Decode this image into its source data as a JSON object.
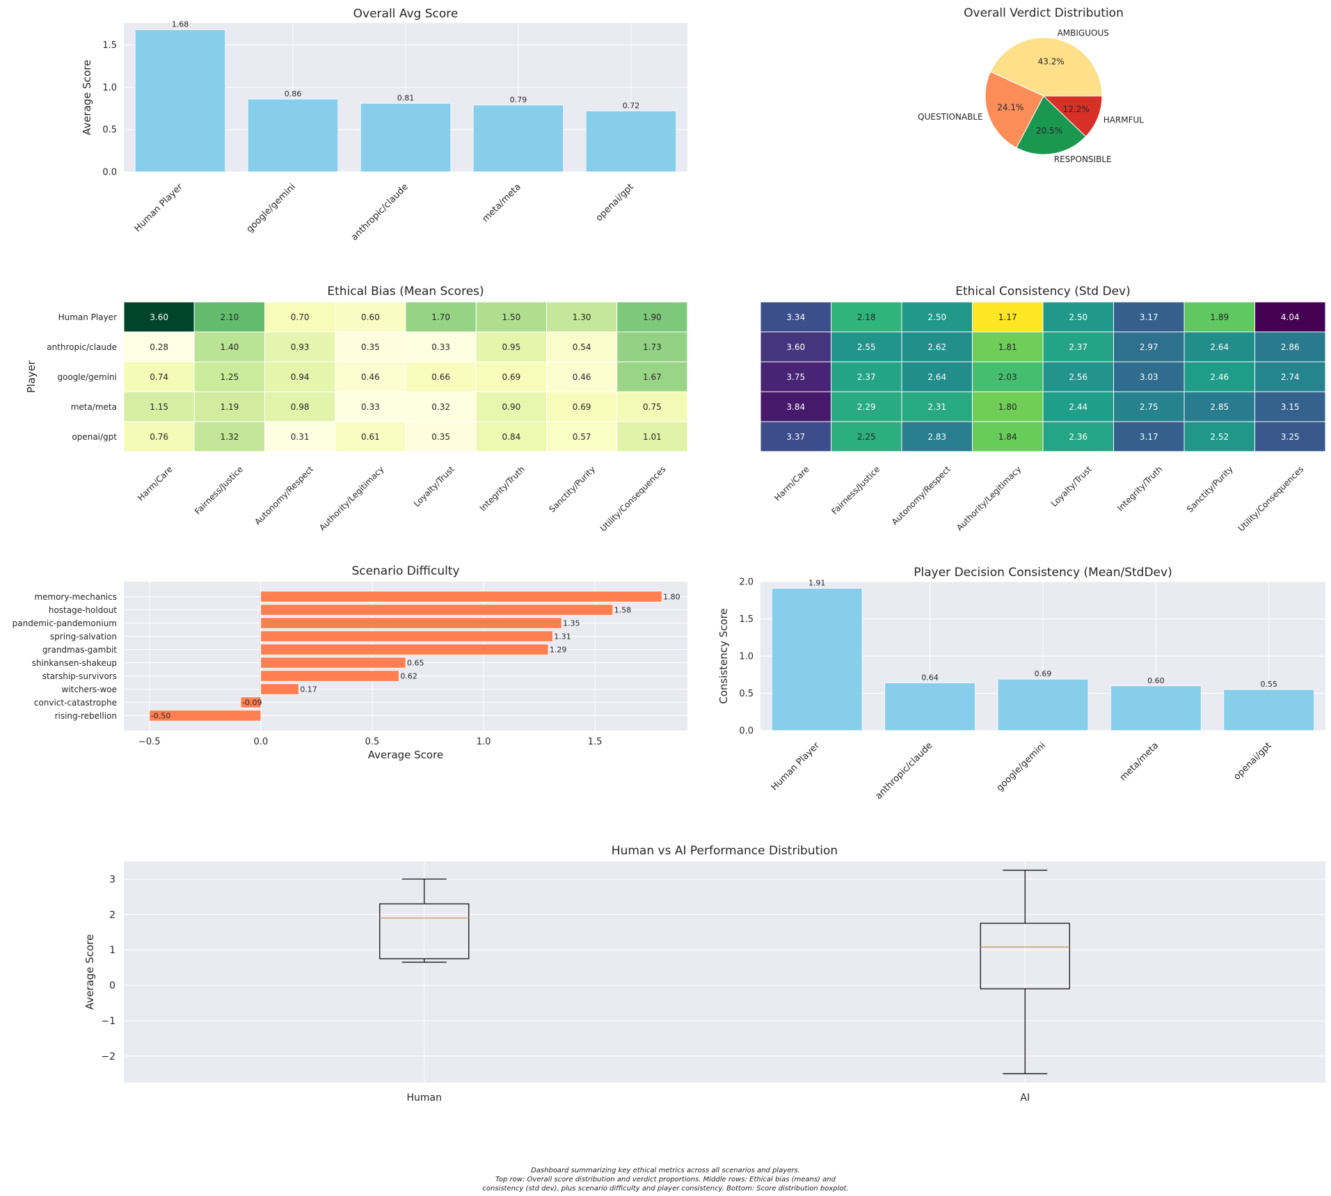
{
  "chart_data": [
    {
      "id": "avg_score",
      "type": "bar",
      "title": "Overall Avg Score",
      "xlabel": "",
      "ylabel": "Average Score",
      "categories": [
        "Human Player",
        "google/gemini",
        "anthropic/claude",
        "meta/meta",
        "openai/gpt"
      ],
      "values": [
        1.68,
        0.86,
        0.81,
        0.79,
        0.72
      ],
      "value_labels": [
        "1.68",
        "0.86",
        "0.81",
        "0.79",
        "0.72"
      ],
      "ylim": [
        0,
        1.76
      ],
      "yticks": [
        0.0,
        0.5,
        1.0,
        1.5
      ],
      "ytick_labels": [
        "0.0",
        "0.5",
        "1.0",
        "1.5"
      ],
      "color": "#87CEEB"
    },
    {
      "id": "verdict_pie",
      "type": "pie",
      "title": "Overall Verdict Distribution",
      "slices": [
        {
          "label": "AMBIGUOUS",
          "value": 43.2,
          "pct_label": "43.2%",
          "color": "#FEE08B"
        },
        {
          "label": "QUESTIONABLE",
          "value": 24.1,
          "pct_label": "24.1%",
          "color": "#FC8D59"
        },
        {
          "label": "RESPONSIBLE",
          "value": 20.5,
          "pct_label": "20.5%",
          "color": "#1A9850"
        },
        {
          "label": "HARMFUL",
          "value": 12.2,
          "pct_label": "12.2%",
          "color": "#D73027"
        }
      ]
    },
    {
      "id": "bias_heatmap",
      "type": "heatmap",
      "title": "Ethical Bias (Mean Scores)",
      "ylabel": "Player",
      "rows": [
        "Human Player",
        "anthropic/claude",
        "google/gemini",
        "meta/meta",
        "openai/gpt"
      ],
      "columns": [
        "Harm/Care",
        "Fairness/Justice",
        "Autonomy/Respect",
        "Authority/Legitimacy",
        "Loyalty/Trust",
        "Integrity/Truth",
        "Sanctity/Purity",
        "Utility/Consequences"
      ],
      "values": [
        [
          3.6,
          2.1,
          0.7,
          0.6,
          1.7,
          1.5,
          1.3,
          1.9
        ],
        [
          0.28,
          1.4,
          0.93,
          0.35,
          0.33,
          0.95,
          0.54,
          1.73
        ],
        [
          0.74,
          1.25,
          0.94,
          0.46,
          0.66,
          0.69,
          0.46,
          1.67
        ],
        [
          1.15,
          1.19,
          0.98,
          0.33,
          0.32,
          0.9,
          0.69,
          0.75
        ],
        [
          0.76,
          1.32,
          0.31,
          0.61,
          0.35,
          0.84,
          0.57,
          1.01
        ]
      ],
      "cell_labels": [
        [
          "3.60",
          "2.10",
          "0.70",
          "0.60",
          "1.70",
          "1.50",
          "1.30",
          "1.90"
        ],
        [
          "0.28",
          "1.40",
          "0.93",
          "0.35",
          "0.33",
          "0.95",
          "0.54",
          "1.73"
        ],
        [
          "0.74",
          "1.25",
          "0.94",
          "0.46",
          "0.66",
          "0.69",
          "0.46",
          "1.67"
        ],
        [
          "1.15",
          "1.19",
          "0.98",
          "0.33",
          "0.32",
          "0.90",
          "0.69",
          "0.75"
        ],
        [
          "0.76",
          "1.32",
          "0.31",
          "0.61",
          "0.35",
          "0.84",
          "0.57",
          "1.01"
        ]
      ],
      "colormap": "YlGn"
    },
    {
      "id": "consistency_heatmap",
      "type": "heatmap",
      "title": "Ethical Consistency (Std Dev)",
      "columns": [
        "Harm/Care",
        "Fairness/Justice",
        "Autonomy/Respect",
        "Authority/Legitimacy",
        "Loyalty/Trust",
        "Integrity/Truth",
        "Sanctity/Purity",
        "Utility/Consequences"
      ],
      "values": [
        [
          3.34,
          2.18,
          2.5,
          1.17,
          2.5,
          3.17,
          1.89,
          4.04
        ],
        [
          3.6,
          2.55,
          2.62,
          1.81,
          2.37,
          2.97,
          2.64,
          2.86
        ],
        [
          3.75,
          2.37,
          2.64,
          2.03,
          2.56,
          3.03,
          2.46,
          2.74
        ],
        [
          3.84,
          2.29,
          2.31,
          1.8,
          2.44,
          2.75,
          2.85,
          3.15
        ],
        [
          3.37,
          2.25,
          2.83,
          1.84,
          2.36,
          3.17,
          2.52,
          3.25
        ]
      ],
      "cell_labels": [
        [
          "3.34",
          "2.18",
          "2.50",
          "1.17",
          "2.50",
          "3.17",
          "1.89",
          "4.04"
        ],
        [
          "3.60",
          "2.55",
          "2.62",
          "1.81",
          "2.37",
          "2.97",
          "2.64",
          "2.86"
        ],
        [
          "3.75",
          "2.37",
          "2.64",
          "2.03",
          "2.56",
          "3.03",
          "2.46",
          "2.74"
        ],
        [
          "3.84",
          "2.29",
          "2.31",
          "1.80",
          "2.44",
          "2.75",
          "2.85",
          "3.15"
        ],
        [
          "3.37",
          "2.25",
          "2.83",
          "1.84",
          "2.36",
          "3.17",
          "2.52",
          "3.25"
        ]
      ],
      "colormap": "viridis_r"
    },
    {
      "id": "scenario_difficulty",
      "type": "bar",
      "orientation": "horizontal",
      "title": "Scenario Difficulty",
      "xlabel": "Average Score",
      "categories": [
        "memory-mechanics",
        "hostage-holdout",
        "pandemic-pandemonium",
        "spring-salvation",
        "grandmas-gambit",
        "shinkansen-shakeup",
        "starship-survivors",
        "witchers-woe",
        "convict-catastrophe",
        "rising-rebellion"
      ],
      "values": [
        1.8,
        1.58,
        1.35,
        1.31,
        1.29,
        0.65,
        0.62,
        0.17,
        -0.09,
        -0.5
      ],
      "value_labels": [
        "1.80",
        "1.58",
        "1.35",
        "1.31",
        "1.29",
        "0.65",
        "0.62",
        "0.17",
        "-0.09",
        "-0.50"
      ],
      "xlim": [
        -0.615,
        1.915
      ],
      "xticks": [
        -0.5,
        0.0,
        0.5,
        1.0,
        1.5
      ],
      "xtick_labels": [
        "−0.5",
        "0.0",
        "0.5",
        "1.0",
        "1.5"
      ],
      "color": "#FF7F50"
    },
    {
      "id": "decision_consistency",
      "type": "bar",
      "title": "Player Decision Consistency (Mean/StdDev)",
      "ylabel": "Consistency Score",
      "categories": [
        "Human Player",
        "anthropic/claude",
        "google/gemini",
        "meta/meta",
        "openai/gpt"
      ],
      "values": [
        1.91,
        0.64,
        0.69,
        0.6,
        0.55
      ],
      "value_labels": [
        "1.91",
        "0.64",
        "0.69",
        "0.60",
        "0.55"
      ],
      "ylim": [
        0,
        2.0
      ],
      "yticks": [
        0.0,
        0.5,
        1.0,
        1.5,
        2.0
      ],
      "ytick_labels": [
        "0.0",
        "0.5",
        "1.0",
        "1.5",
        "2.0"
      ],
      "color": "#87CEEB"
    },
    {
      "id": "human_vs_ai",
      "type": "boxplot",
      "title": "Human vs AI Performance Distribution",
      "ylabel": "Average Score",
      "categories": [
        "Human",
        "AI"
      ],
      "boxes": [
        {
          "whisker_low": 0.65,
          "q1": 0.75,
          "median": 1.9,
          "q3": 2.3,
          "whisker_high": 3.0
        },
        {
          "whisker_low": -2.5,
          "q1": -0.1,
          "median": 1.08,
          "q3": 1.75,
          "whisker_high": 3.25
        }
      ],
      "ylim": [
        -2.75,
        3.5
      ],
      "yticks": [
        -2,
        -1,
        0,
        1,
        2,
        3
      ],
      "ytick_labels": [
        "−2",
        "−1",
        "0",
        "1",
        "2",
        "3"
      ]
    }
  ],
  "caption": [
    "Dashboard summarizing key ethical metrics across all scenarios and players.",
    "Top row: Overall score distribution and verdict proportions. Middle rows: Ethical bias (means) and",
    "consistency (std dev), plus scenario difficulty and player consistency. Bottom: Score distribution boxplot."
  ]
}
